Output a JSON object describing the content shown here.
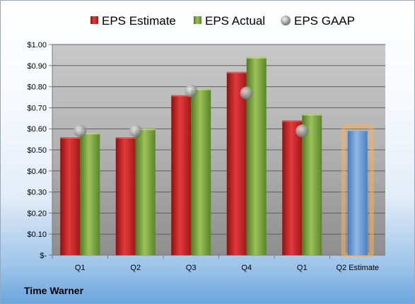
{
  "company": "Time Warner",
  "chart_data": {
    "type": "bar",
    "categories": [
      "Q1",
      "Q2",
      "Q3",
      "Q4",
      "Q1",
      "Q2 Estimate"
    ],
    "series": [
      {
        "name": "EPS Estimate",
        "kind": "bar",
        "color": "#cc2a2a",
        "values": [
          0.56,
          0.56,
          0.76,
          0.87,
          0.64,
          null
        ]
      },
      {
        "name": "EPS Actual",
        "kind": "bar",
        "color": "#7da843",
        "values": [
          0.58,
          0.6,
          0.79,
          0.94,
          0.67,
          null
        ]
      },
      {
        "name": "EPS GAAP",
        "kind": "marker",
        "color": "#a8a8a8",
        "values": [
          0.59,
          0.59,
          0.78,
          0.77,
          0.59,
          null
        ]
      },
      {
        "name": "",
        "kind": "bar",
        "color": "#6f9dd6",
        "highlight": "#f7b05a",
        "values": [
          null,
          null,
          null,
          null,
          null,
          0.59
        ]
      }
    ],
    "y_tick_labels": [
      "$-",
      "$0.10",
      "$0.20",
      "$0.30",
      "$0.40",
      "$0.50",
      "$0.60",
      "$0.70",
      "$0.80",
      "$0.90",
      "$1.00"
    ],
    "ylim": [
      0,
      1.0
    ],
    "y_step": 0.1,
    "grid": true,
    "legend": "top"
  }
}
